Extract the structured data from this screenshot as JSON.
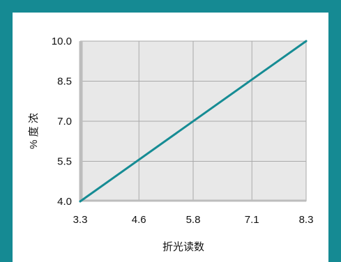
{
  "chart_data": {
    "type": "line",
    "title": "",
    "xlabel": "折光读数",
    "ylabel": "% 度 浓",
    "x_ticks": [
      3.3,
      4.6,
      5.8,
      7.1,
      8.3
    ],
    "y_ticks": [
      4.0,
      5.5,
      7.0,
      8.5,
      10.0
    ],
    "x_tick_labels": [
      "3.3",
      "4.6",
      "5.8",
      "7.1",
      "8.3"
    ],
    "y_tick_labels": [
      "4.0",
      "5.5",
      "7.0",
      "8.5",
      "10.0"
    ],
    "xlim": [
      3.3,
      8.3
    ],
    "ylim": [
      4.0,
      10.0
    ],
    "grid": true,
    "series": [
      {
        "x": [
          3.3,
          8.3
        ],
        "y": [
          4.0,
          10.0
        ]
      }
    ]
  },
  "colors": {
    "frame": "#158a93",
    "panel": "#ffffff",
    "plot_bg": "#e8e8e8",
    "grid": "#a9a9a9",
    "axis": "#bdbdbd",
    "line": "#168c94"
  }
}
